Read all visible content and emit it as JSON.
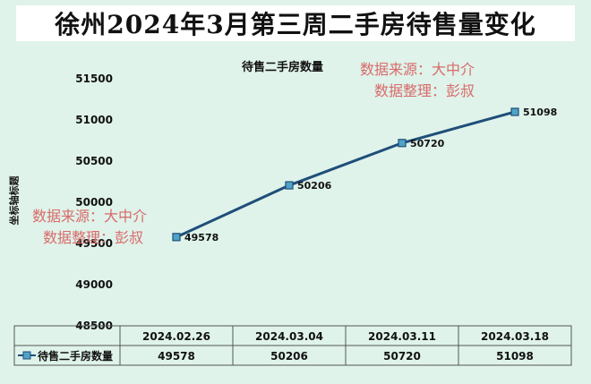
{
  "header": {
    "title": "徐州2024年3月第三周二手房待售量变化"
  },
  "watermarks": [
    {
      "line1": "数据来源：大中介",
      "line2": "数据整理：彭叔"
    },
    {
      "line1": "数据来源：大中介",
      "line2": "数据整理：彭叔"
    }
  ],
  "colors": {
    "line": "#1f4e79",
    "marker_fill": "#4fa3c7",
    "background": "#dff3ea"
  },
  "chart_data": {
    "type": "line",
    "title": "待售二手房数量",
    "xlabel": "",
    "ylabel": "坐标轴标题",
    "categories": [
      "2024.02.26",
      "2024.03.04",
      "2024.03.11",
      "2024.03.18"
    ],
    "series": [
      {
        "name": "待售二手房数量",
        "values": [
          49578,
          50206,
          50720,
          51098
        ]
      }
    ],
    "ylim": [
      48500,
      51500
    ],
    "yticks": [
      48500,
      49000,
      49500,
      50000,
      50500,
      51000,
      51500
    ],
    "grid": false,
    "legend": "data-table",
    "data_labels": true
  }
}
